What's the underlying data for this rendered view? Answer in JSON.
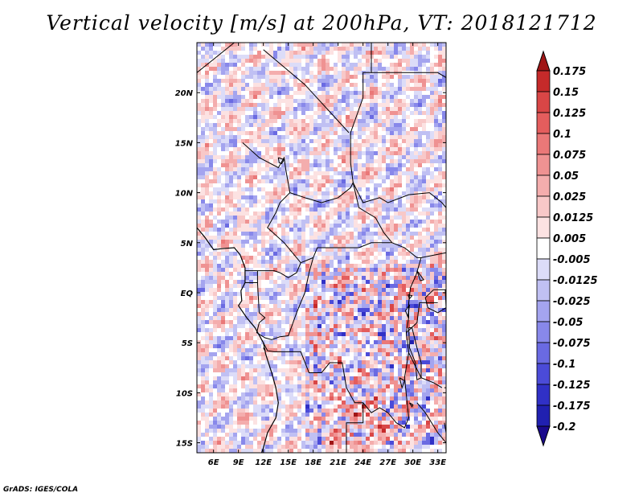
{
  "title": "Vertical velocity [m/s] at 200hPa, VT: 2018121712",
  "credit": "GrADS: IGES/COLA",
  "chart_data": {
    "type": "heatmap",
    "variable": "Vertical velocity",
    "units": "m/s",
    "level": "200hPa",
    "valid_time": "2018121712",
    "lon_range": [
      4,
      34
    ],
    "lat_range": [
      -16,
      25
    ],
    "x_ticks": [
      {
        "lon": 6,
        "label": "6E"
      },
      {
        "lon": 9,
        "label": "9E"
      },
      {
        "lon": 12,
        "label": "12E"
      },
      {
        "lon": 15,
        "label": "15E"
      },
      {
        "lon": 18,
        "label": "18E"
      },
      {
        "lon": 21,
        "label": "21E"
      },
      {
        "lon": 24,
        "label": "24E"
      },
      {
        "lon": 27,
        "label": "27E"
      },
      {
        "lon": 30,
        "label": "30E"
      },
      {
        "lon": 33,
        "label": "33E"
      }
    ],
    "y_ticks": [
      {
        "lat": 20,
        "label": "20N"
      },
      {
        "lat": 15,
        "label": "15N"
      },
      {
        "lat": 10,
        "label": "10N"
      },
      {
        "lat": 5,
        "label": "5N"
      },
      {
        "lat": 0,
        "label": "EQ"
      },
      {
        "lat": -5,
        "label": "5S"
      },
      {
        "lat": -10,
        "label": "10S"
      },
      {
        "lat": -15,
        "label": "15S"
      }
    ],
    "colorbar": {
      "orientation": "vertical",
      "placement": "right",
      "labels": [
        "0.175",
        "0.15",
        "0.125",
        "0.1",
        "0.075",
        "0.05",
        "0.025",
        "0.0125",
        "0.005",
        "-0.005",
        "-0.0125",
        "-0.025",
        "-0.05",
        "-0.075",
        "-0.1",
        "-0.125",
        "-0.175",
        "-0.2"
      ],
      "colors": [
        "#a01616",
        "#c52a2a",
        "#d94646",
        "#e45d5d",
        "#ea7878",
        "#ef9292",
        "#f4adad",
        "#f8c8c8",
        "#fce2e2",
        "#ffffff",
        "#dcdcf8",
        "#c0c0f3",
        "#a4a4ef",
        "#8888ea",
        "#6a6ae2",
        "#4b4bd8",
        "#3030c6",
        "#2020b0",
        "#1a0a8c"
      ]
    },
    "borders": [
      [
        [
          4,
          22
        ],
        [
          8.5,
          25
        ]
      ],
      [
        [
          12,
          24.3
        ],
        [
          17,
          20.8
        ],
        [
          22.3,
          16
        ]
      ],
      [
        [
          22.5,
          16
        ],
        [
          24,
          19.5
        ],
        [
          24,
          22
        ],
        [
          25,
          22
        ],
        [
          25,
          25
        ]
      ],
      [
        [
          25,
          22
        ],
        [
          33,
          22
        ],
        [
          34,
          21.5
        ]
      ],
      [
        [
          9.5,
          15
        ],
        [
          11.5,
          13.5
        ],
        [
          13.8,
          12.5
        ],
        [
          14.5,
          13.5
        ],
        [
          14.7,
          12.3
        ],
        [
          15.2,
          10
        ],
        [
          14,
          9
        ],
        [
          13.5,
          8
        ],
        [
          12.5,
          6.5
        ],
        [
          14.5,
          5
        ],
        [
          15.5,
          4
        ],
        [
          16.5,
          3
        ],
        [
          18,
          3.5
        ],
        [
          18.5,
          4.5
        ],
        [
          20.5,
          4.5
        ],
        [
          22,
          4.5
        ],
        [
          23.5,
          4.5
        ],
        [
          25,
          5
        ],
        [
          27.5,
          5
        ]
      ],
      [
        [
          15.2,
          10
        ],
        [
          17,
          9.5
        ],
        [
          19,
          9
        ],
        [
          21,
          9.5
        ],
        [
          22.5,
          10.5
        ],
        [
          22.8,
          11
        ],
        [
          23.5,
          8.5
        ],
        [
          24.5,
          8
        ],
        [
          25.5,
          7.5
        ],
        [
          26.5,
          6
        ],
        [
          27.5,
          5
        ]
      ],
      [
        [
          22.5,
          16
        ],
        [
          22.5,
          13
        ],
        [
          22.8,
          11
        ]
      ],
      [
        [
          22.8,
          11
        ],
        [
          24,
          9
        ],
        [
          26,
          9.5
        ],
        [
          27,
          9
        ],
        [
          29.5,
          9.8
        ],
        [
          32,
          10
        ],
        [
          33.5,
          9
        ],
        [
          34,
          8.5
        ]
      ],
      [
        [
          27.5,
          5
        ],
        [
          29,
          4.5
        ],
        [
          30.5,
          3.5
        ],
        [
          31,
          3.5
        ],
        [
          34,
          4
        ]
      ],
      [
        [
          11.3,
          2.2
        ],
        [
          10,
          2.2
        ],
        [
          9.8,
          2.2
        ]
      ],
      [
        [
          11.3,
          2.2
        ],
        [
          11.3,
          1
        ],
        [
          9.8,
          1
        ]
      ],
      [
        [
          11.3,
          2.2
        ],
        [
          13.3,
          2.2
        ],
        [
          14,
          2
        ],
        [
          15,
          1.5
        ],
        [
          16,
          2
        ],
        [
          16.5,
          3
        ]
      ],
      [
        [
          11.3,
          1
        ],
        [
          11.5,
          -2
        ],
        [
          12.2,
          -2.5
        ],
        [
          11.5,
          -3
        ],
        [
          11.2,
          -4
        ],
        [
          12.2,
          -4.5
        ],
        [
          13,
          -4.7
        ],
        [
          14,
          -4.4
        ],
        [
          15,
          -4.3
        ],
        [
          16,
          -2
        ],
        [
          17,
          0
        ],
        [
          17.5,
          2
        ],
        [
          18,
          3.5
        ]
      ],
      [
        [
          12,
          -5
        ],
        [
          12.5,
          -5.8
        ],
        [
          13.3,
          -5.9
        ],
        [
          16.5,
          -5.9
        ],
        [
          17.5,
          -8
        ],
        [
          19,
          -8
        ],
        [
          20,
          -7
        ],
        [
          21.5,
          -7
        ],
        [
          22,
          -9.5
        ],
        [
          23,
          -11
        ],
        [
          24,
          -11
        ],
        [
          25,
          -12
        ],
        [
          26,
          -11.5
        ],
        [
          27,
          -12
        ],
        [
          28,
          -13
        ],
        [
          29,
          -13.5
        ],
        [
          29.5,
          -12.5
        ],
        [
          29,
          -8.5
        ],
        [
          29.5,
          -6
        ],
        [
          29.2,
          -4
        ]
      ],
      [
        [
          12,
          -5.5
        ],
        [
          12.2,
          -5.8
        ]
      ],
      [
        [
          29.2,
          -4
        ],
        [
          29.5,
          -2.5
        ],
        [
          29.5,
          -1
        ],
        [
          29.7,
          0.5
        ],
        [
          30.4,
          1.8
        ],
        [
          31,
          3.5
        ]
      ],
      [
        [
          13,
          -16
        ],
        [
          22,
          -16
        ]
      ],
      [
        [
          22,
          -16
        ],
        [
          22,
          -13
        ],
        [
          24,
          -13
        ],
        [
          24,
          -11
        ]
      ],
      [
        [
          29.2,
          -4
        ],
        [
          30.5,
          -3
        ],
        [
          30.8,
          -1
        ],
        [
          33,
          -1
        ]
      ],
      [
        [
          29.5,
          -6
        ],
        [
          31,
          -8.5
        ],
        [
          32.5,
          -9
        ],
        [
          33.5,
          -9.5
        ]
      ],
      [
        [
          30.5,
          -11
        ],
        [
          31.5,
          -12
        ],
        [
          33,
          -14
        ],
        [
          34,
          -15
        ]
      ]
    ],
    "coastlines": [
      [
        [
          4,
          6.5
        ],
        [
          5,
          5.5
        ],
        [
          6,
          4.3
        ],
        [
          7,
          4.4
        ],
        [
          8.5,
          4.5
        ],
        [
          9.2,
          3.8
        ],
        [
          9.8,
          2.5
        ],
        [
          9.8,
          1
        ],
        [
          9.3,
          0.2
        ],
        [
          9.4,
          -0.8
        ],
        [
          9,
          -1.3
        ],
        [
          10,
          -2.5
        ],
        [
          11,
          -3.5
        ],
        [
          12,
          -5
        ],
        [
          12.3,
          -6.2
        ],
        [
          13,
          -8
        ],
        [
          13.5,
          -9.5
        ],
        [
          13.8,
          -11
        ],
        [
          13.5,
          -12.5
        ],
        [
          12.5,
          -14
        ],
        [
          12,
          -15.5
        ],
        [
          11.8,
          -16
        ]
      ]
    ],
    "lakes": [
      [
        [
          13.8,
          13.5
        ],
        [
          14.5,
          13.3
        ],
        [
          14.2,
          12.9
        ],
        [
          13.9,
          13.0
        ],
        [
          13.8,
          13.5
        ]
      ],
      [
        [
          32.5,
          0.3
        ],
        [
          33.9,
          0.3
        ],
        [
          34,
          -1.5
        ],
        [
          33,
          -2
        ],
        [
          31.8,
          -1.5
        ],
        [
          31.5,
          -0.5
        ],
        [
          32.5,
          0.3
        ]
      ],
      [
        [
          29.5,
          -3.5
        ],
        [
          29.9,
          -3.5
        ],
        [
          30.5,
          -5.5
        ],
        [
          31,
          -7
        ],
        [
          31,
          -8.5
        ],
        [
          30.5,
          -8.7
        ],
        [
          30.3,
          -7
        ],
        [
          29.6,
          -5.5
        ],
        [
          29.5,
          -3.5
        ]
      ],
      [
        [
          33.8,
          -9.5
        ],
        [
          34,
          -9.5
        ],
        [
          34,
          -14
        ],
        [
          33.8,
          -13
        ]
      ],
      [
        [
          29.6,
          -1.2
        ],
        [
          29.4,
          -2.4
        ],
        [
          29.1,
          -1.8
        ],
        [
          29.6,
          -1.2
        ]
      ],
      [
        [
          30.5,
          2.2
        ],
        [
          31.3,
          1.3
        ],
        [
          30.9,
          1.2
        ],
        [
          30.5,
          2.2
        ]
      ],
      [
        [
          29.4,
          -0.2
        ],
        [
          29.9,
          -0.3
        ],
        [
          29.6,
          -0.6
        ],
        [
          29.4,
          -0.2
        ]
      ],
      [
        [
          28.4,
          -8.5
        ],
        [
          29,
          -8.8
        ],
        [
          28.7,
          -9.5
        ],
        [
          28.4,
          -8.5
        ]
      ],
      [
        [
          29.6,
          -11.0
        ],
        [
          30,
          -11.2
        ],
        [
          29.9,
          -11.4
        ],
        [
          29.6,
          -11.0
        ]
      ]
    ]
  }
}
